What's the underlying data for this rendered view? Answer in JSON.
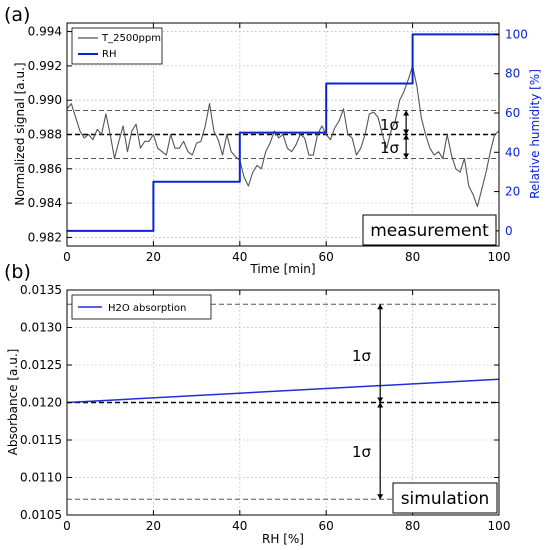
{
  "panel_labels": {
    "a": "(a)",
    "b": "(b)"
  },
  "colors": {
    "signal": "#555555",
    "rh": "#0b23d6",
    "absorption": "#1f2fd6"
  },
  "chart_data": [
    {
      "type": "line",
      "panel": "(a)",
      "xlabel": "Time [min]",
      "ylabel": "Normalized signal [a.u.]",
      "y2label": "Relative humidity [%]",
      "xlim": [
        0,
        100
      ],
      "ylim": [
        0.9815,
        0.9945
      ],
      "y2lim": [
        -7.7,
        105.8
      ],
      "x_ticks": [
        "0",
        "20",
        "40",
        "60",
        "80",
        "100"
      ],
      "y_ticks": [
        "0.982",
        "0.984",
        "0.986",
        "0.988",
        "0.990",
        "0.992",
        "0.994"
      ],
      "y2_ticks": [
        "0",
        "20",
        "40",
        "60",
        "80",
        "100"
      ],
      "grid": true,
      "legend_position": "top-left",
      "series": [
        {
          "name": "T_2500ppm",
          "color": "#555555",
          "x": [
            0,
            1,
            2,
            3,
            4,
            5,
            6,
            7,
            8,
            9,
            10,
            11,
            12,
            13,
            14,
            15,
            16,
            17,
            18,
            19,
            20,
            21,
            22,
            23,
            24,
            25,
            26,
            27,
            28,
            29,
            30,
            31,
            32,
            33,
            34,
            35,
            36,
            37,
            38,
            39,
            40,
            41,
            42,
            43,
            44,
            45,
            46,
            47,
            48,
            49,
            50,
            51,
            52,
            53,
            54,
            55,
            56,
            57,
            58,
            59,
            60,
            61,
            62,
            63,
            64,
            65,
            66,
            67,
            68,
            69,
            70,
            71,
            72,
            73,
            74,
            75,
            76,
            77,
            78,
            79,
            80,
            81,
            82,
            83,
            84,
            85,
            86,
            87,
            88,
            89,
            90,
            91,
            92,
            93,
            94,
            95,
            96,
            97,
            98,
            99,
            100
          ],
          "y": [
            0.9895,
            0.9898,
            0.989,
            0.9882,
            0.9878,
            0.988,
            0.9877,
            0.9883,
            0.988,
            0.9892,
            0.988,
            0.9866,
            0.9876,
            0.9885,
            0.987,
            0.9882,
            0.9886,
            0.9872,
            0.9876,
            0.9876,
            0.988,
            0.9872,
            0.987,
            0.9868,
            0.988,
            0.9872,
            0.9872,
            0.9876,
            0.987,
            0.9868,
            0.9875,
            0.9876,
            0.9885,
            0.9898,
            0.9882,
            0.9877,
            0.9868,
            0.988,
            0.987,
            0.9867,
            0.9865,
            0.9855,
            0.985,
            0.9858,
            0.9862,
            0.986,
            0.987,
            0.9875,
            0.9882,
            0.9878,
            0.988,
            0.9872,
            0.987,
            0.9874,
            0.988,
            0.9878,
            0.9868,
            0.9868,
            0.988,
            0.9885,
            0.988,
            0.9877,
            0.9884,
            0.9888,
            0.9895,
            0.988,
            0.9878,
            0.9868,
            0.9872,
            0.988,
            0.9892,
            0.9893,
            0.989,
            0.988,
            0.9872,
            0.9882,
            0.9888,
            0.99,
            0.9905,
            0.9912,
            0.992,
            0.9908,
            0.989,
            0.988,
            0.9872,
            0.9868,
            0.987,
            0.9866,
            0.988,
            0.9868,
            0.986,
            0.9858,
            0.9866,
            0.985,
            0.9845,
            0.9838,
            0.9848,
            0.9858,
            0.987,
            0.988,
            0.9882
          ]
        },
        {
          "name": "RH",
          "axis": "y2",
          "color": "#0b23d6",
          "x": [
            0,
            20,
            20,
            40,
            40,
            60,
            60,
            80,
            80,
            100
          ],
          "y": [
            0,
            0,
            25,
            25,
            50,
            50,
            75,
            75,
            100,
            100
          ]
        }
      ],
      "reference_lines": {
        "mean": 0.988,
        "upper": 0.9894,
        "lower": 0.9866
      },
      "sigma_labels": [
        "1σ",
        "1σ"
      ],
      "box_label": "measurement"
    },
    {
      "type": "line",
      "panel": "(b)",
      "xlabel": "RH [%]",
      "ylabel": "Absorbance [a.u.]",
      "xlim": [
        0,
        100
      ],
      "ylim": [
        0.0105,
        0.0135
      ],
      "x_ticks": [
        "0",
        "20",
        "40",
        "60",
        "80",
        "100"
      ],
      "y_ticks": [
        "0.0105",
        "0.0110",
        "0.0115",
        "0.0120",
        "0.0125",
        "0.0130",
        "0.0135"
      ],
      "grid": true,
      "legend_position": "top-left",
      "series": [
        {
          "name": "H2O absorption",
          "color": "#1f2fd6",
          "x": [
            0,
            100
          ],
          "y": [
            0.012,
            0.01231
          ]
        }
      ],
      "reference_lines": {
        "mean": 0.012,
        "upper": 0.01331,
        "lower": 0.01071
      },
      "sigma_labels": [
        "1σ",
        "1σ"
      ],
      "box_label": "simulation"
    }
  ]
}
